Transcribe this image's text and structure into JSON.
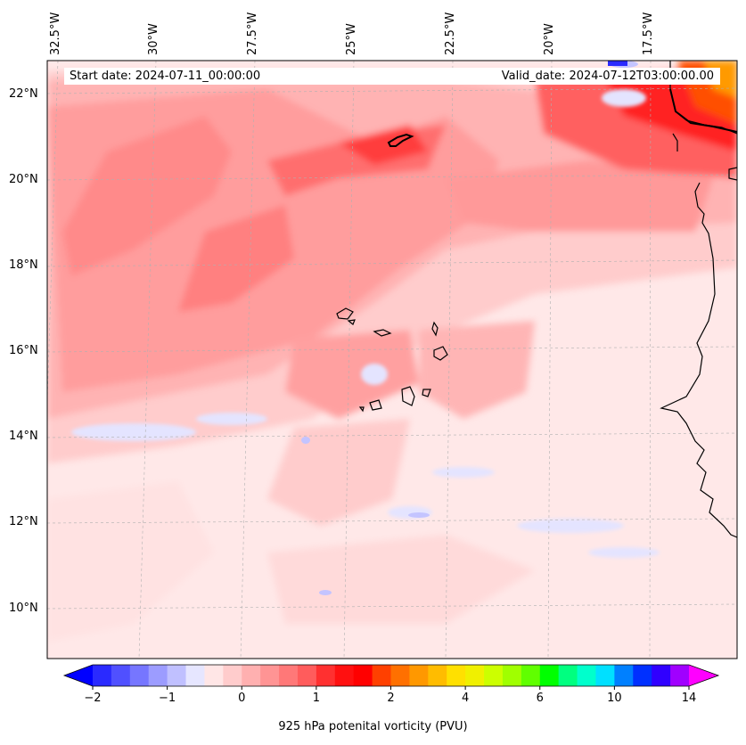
{
  "map": {
    "start_date": "Start date: 2024-07-11_00:00:00",
    "valid_date": "Valid_date: 2024-07-12T03:00:00.00",
    "lon_labels": [
      "32.5°W",
      "30°W",
      "27.5°W",
      "25°W",
      "22.5°W",
      "20°W",
      "17.5°W"
    ],
    "lat_labels": [
      "22°N",
      "20°N",
      "18°N",
      "16°N",
      "14°N",
      "12°N",
      "10°N"
    ],
    "colorbar_label": "925 hPa potenital vorticity (PVU)",
    "colorbar_ticks": [
      "−2",
      "−1",
      "0",
      "1",
      "2",
      "4",
      "6",
      "10",
      "14"
    ],
    "colorbar_levels": [
      -2,
      -1.75,
      -1.5,
      -1.25,
      -1,
      -0.75,
      -0.5,
      -0.25,
      0,
      0.25,
      0.5,
      0.75,
      1,
      1.25,
      1.5,
      1.75,
      2,
      2.5,
      3,
      3.5,
      4,
      4.5,
      5,
      5.5,
      6,
      7,
      8,
      9,
      10,
      11,
      12,
      13,
      14,
      15
    ],
    "colorbar_colors": [
      "#0000ff",
      "#2a2aff",
      "#5050ff",
      "#7676ff",
      "#9c9cff",
      "#c0c0ff",
      "#e6e6ff",
      "#ffe6e6",
      "#ffcccc",
      "#ffb0b0",
      "#ff9494",
      "#ff7878",
      "#ff5c5c",
      "#ff3030",
      "#ff1010",
      "#ff0000",
      "#ff4000",
      "#ff7000",
      "#ff9800",
      "#ffbc00",
      "#ffe000",
      "#f0f000",
      "#ccff00",
      "#a0ff00",
      "#60ff00",
      "#00ff00",
      "#00ff80",
      "#00ffcc",
      "#00e0ff",
      "#0080ff",
      "#0030ff",
      "#3000ff",
      "#a000ff",
      "#ff00ff"
    ]
  }
}
